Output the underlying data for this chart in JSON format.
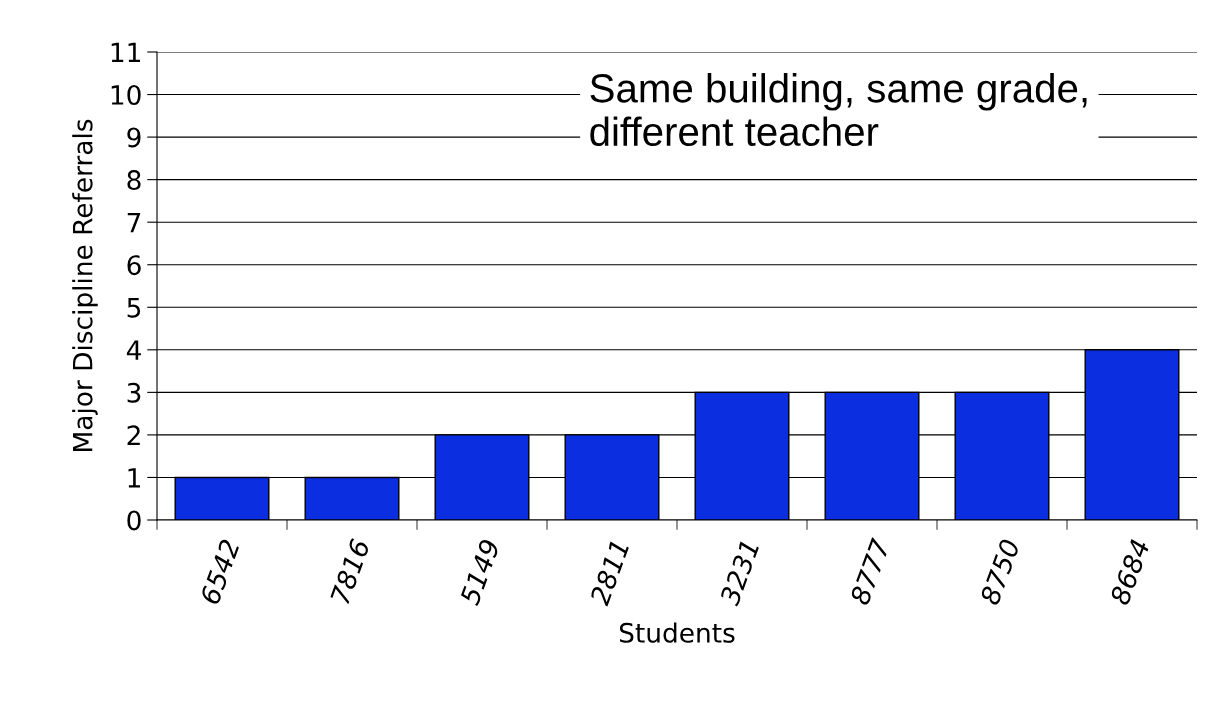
{
  "chart_data": {
    "type": "bar",
    "xlabel": "Students",
    "ylabel": "Major Discipline Referrals",
    "categories": [
      "6542",
      "7816",
      "5149",
      "2811",
      "3231",
      "8777",
      "8750",
      "8684"
    ],
    "values": [
      1,
      1,
      2,
      2,
      3,
      3,
      3,
      4
    ],
    "color": "#0a2ee0",
    "ylim": [
      0,
      11
    ],
    "yticks": [
      0,
      1,
      2,
      3,
      4,
      5,
      6,
      7,
      8,
      9,
      10,
      11
    ],
    "grid": "y",
    "legend": false,
    "annotations": [
      "Same building, same grade, different teacher"
    ]
  }
}
